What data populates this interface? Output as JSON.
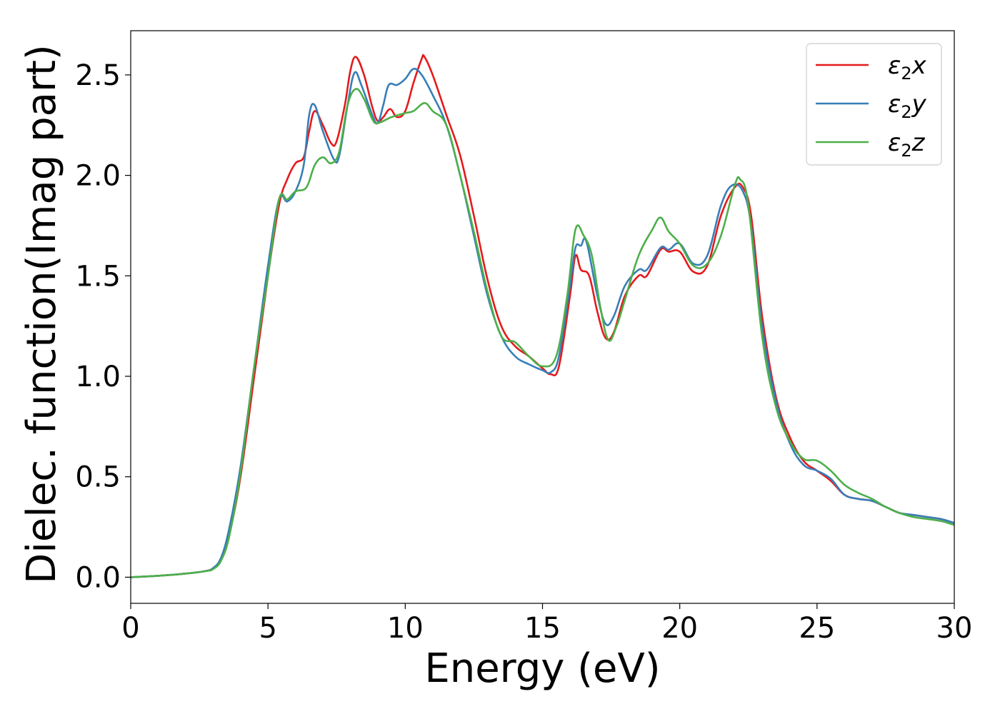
{
  "chart_data": {
    "type": "line",
    "xlabel": "Energy (eV)",
    "ylabel": "Dielec. function(Imag part)",
    "xlim": [
      0,
      30
    ],
    "ylim": [
      -0.13,
      2.72
    ],
    "x_ticks": [
      0,
      5,
      10,
      15,
      20,
      25,
      30
    ],
    "x_tick_labels": [
      "0",
      "5",
      "10",
      "15",
      "20",
      "25",
      "30"
    ],
    "y_ticks": [
      0.0,
      0.5,
      1.0,
      1.5,
      2.0,
      2.5
    ],
    "y_tick_labels": [
      "0.0",
      "0.5",
      "1.0",
      "1.5",
      "2.0",
      "2.5"
    ],
    "grid": false,
    "legend": {
      "position": "top-right",
      "entries": [
        {
          "base": "ε",
          "sub": "2",
          "suffix": "x"
        },
        {
          "base": "ε",
          "sub": "2",
          "suffix": "y"
        },
        {
          "base": "ε",
          "sub": "2",
          "suffix": "z"
        }
      ]
    },
    "series": [
      {
        "name": "ε2x",
        "color": "#e41a1c",
        "points": [
          [
            0,
            0.0
          ],
          [
            1,
            0.007
          ],
          [
            2,
            0.018
          ],
          [
            2.7,
            0.03
          ],
          [
            3.0,
            0.045
          ],
          [
            3.3,
            0.09
          ],
          [
            3.6,
            0.22
          ],
          [
            4.0,
            0.5
          ],
          [
            4.5,
            1.0
          ],
          [
            5.0,
            1.5
          ],
          [
            5.4,
            1.85
          ],
          [
            5.7,
            1.98
          ],
          [
            6.0,
            2.06
          ],
          [
            6.3,
            2.09
          ],
          [
            6.5,
            2.22
          ],
          [
            6.7,
            2.32
          ],
          [
            7.0,
            2.25
          ],
          [
            7.3,
            2.16
          ],
          [
            7.5,
            2.17
          ],
          [
            7.8,
            2.35
          ],
          [
            8.0,
            2.52
          ],
          [
            8.2,
            2.59
          ],
          [
            8.5,
            2.5
          ],
          [
            8.8,
            2.34
          ],
          [
            9.0,
            2.27
          ],
          [
            9.2,
            2.29
          ],
          [
            9.45,
            2.33
          ],
          [
            9.7,
            2.29
          ],
          [
            10.0,
            2.32
          ],
          [
            10.3,
            2.46
          ],
          [
            10.6,
            2.58
          ],
          [
            10.7,
            2.59
          ],
          [
            11.0,
            2.5
          ],
          [
            11.5,
            2.3
          ],
          [
            12.0,
            2.1
          ],
          [
            12.5,
            1.8
          ],
          [
            13.0,
            1.48
          ],
          [
            13.5,
            1.25
          ],
          [
            14.0,
            1.15
          ],
          [
            14.5,
            1.1
          ],
          [
            15.0,
            1.04
          ],
          [
            15.3,
            1.01
          ],
          [
            15.6,
            1.05
          ],
          [
            16.0,
            1.4
          ],
          [
            16.2,
            1.6
          ],
          [
            16.4,
            1.53
          ],
          [
            16.7,
            1.5
          ],
          [
            17.0,
            1.32
          ],
          [
            17.3,
            1.19
          ],
          [
            17.6,
            1.22
          ],
          [
            18.0,
            1.4
          ],
          [
            18.5,
            1.5
          ],
          [
            18.8,
            1.5
          ],
          [
            19.3,
            1.63
          ],
          [
            19.6,
            1.62
          ],
          [
            20.0,
            1.62
          ],
          [
            20.5,
            1.52
          ],
          [
            21.0,
            1.55
          ],
          [
            21.5,
            1.8
          ],
          [
            22.0,
            1.94
          ],
          [
            22.3,
            1.94
          ],
          [
            22.6,
            1.8
          ],
          [
            23.0,
            1.3
          ],
          [
            23.5,
            0.9
          ],
          [
            24.0,
            0.7
          ],
          [
            24.5,
            0.58
          ],
          [
            25.0,
            0.53
          ],
          [
            25.5,
            0.48
          ],
          [
            26.0,
            0.41
          ],
          [
            26.5,
            0.39
          ],
          [
            27.0,
            0.38
          ],
          [
            27.5,
            0.35
          ],
          [
            28.0,
            0.32
          ],
          [
            28.5,
            0.31
          ],
          [
            29.0,
            0.3
          ],
          [
            29.5,
            0.29
          ],
          [
            30.0,
            0.27
          ]
        ]
      },
      {
        "name": "ε2y",
        "color": "#377eb8",
        "points": [
          [
            0,
            0.0
          ],
          [
            1,
            0.007
          ],
          [
            2,
            0.018
          ],
          [
            2.7,
            0.03
          ],
          [
            3.0,
            0.045
          ],
          [
            3.3,
            0.1
          ],
          [
            3.6,
            0.25
          ],
          [
            4.0,
            0.55
          ],
          [
            4.5,
            1.05
          ],
          [
            5.0,
            1.55
          ],
          [
            5.4,
            1.88
          ],
          [
            5.7,
            1.87
          ],
          [
            6.0,
            1.92
          ],
          [
            6.3,
            2.05
          ],
          [
            6.5,
            2.3
          ],
          [
            6.7,
            2.35
          ],
          [
            7.0,
            2.22
          ],
          [
            7.4,
            2.08
          ],
          [
            7.6,
            2.1
          ],
          [
            7.9,
            2.35
          ],
          [
            8.15,
            2.51
          ],
          [
            8.4,
            2.45
          ],
          [
            8.8,
            2.3
          ],
          [
            9.0,
            2.26
          ],
          [
            9.2,
            2.35
          ],
          [
            9.4,
            2.45
          ],
          [
            9.7,
            2.45
          ],
          [
            10.0,
            2.48
          ],
          [
            10.3,
            2.53
          ],
          [
            10.6,
            2.5
          ],
          [
            11.0,
            2.4
          ],
          [
            11.5,
            2.25
          ],
          [
            12.0,
            2.0
          ],
          [
            12.5,
            1.7
          ],
          [
            13.0,
            1.4
          ],
          [
            13.5,
            1.2
          ],
          [
            14.0,
            1.1
          ],
          [
            14.5,
            1.06
          ],
          [
            15.0,
            1.03
          ],
          [
            15.3,
            1.02
          ],
          [
            15.6,
            1.1
          ],
          [
            16.0,
            1.45
          ],
          [
            16.2,
            1.64
          ],
          [
            16.4,
            1.65
          ],
          [
            16.6,
            1.67
          ],
          [
            17.0,
            1.4
          ],
          [
            17.3,
            1.26
          ],
          [
            17.6,
            1.3
          ],
          [
            18.0,
            1.45
          ],
          [
            18.5,
            1.53
          ],
          [
            18.8,
            1.53
          ],
          [
            19.3,
            1.64
          ],
          [
            19.6,
            1.63
          ],
          [
            20.0,
            1.66
          ],
          [
            20.5,
            1.56
          ],
          [
            21.0,
            1.6
          ],
          [
            21.5,
            1.85
          ],
          [
            21.9,
            1.95
          ],
          [
            22.3,
            1.92
          ],
          [
            22.6,
            1.75
          ],
          [
            23.0,
            1.25
          ],
          [
            23.5,
            0.88
          ],
          [
            24.0,
            0.67
          ],
          [
            24.5,
            0.56
          ],
          [
            25.0,
            0.53
          ],
          [
            25.5,
            0.49
          ],
          [
            26.0,
            0.41
          ],
          [
            26.5,
            0.39
          ],
          [
            27.0,
            0.38
          ],
          [
            27.5,
            0.35
          ],
          [
            28.0,
            0.32
          ],
          [
            28.5,
            0.31
          ],
          [
            29.0,
            0.3
          ],
          [
            29.5,
            0.29
          ],
          [
            30.0,
            0.27
          ]
        ]
      },
      {
        "name": "ε2z",
        "color": "#4daf4a",
        "points": [
          [
            0,
            0.0
          ],
          [
            1,
            0.007
          ],
          [
            2,
            0.018
          ],
          [
            2.7,
            0.03
          ],
          [
            3.0,
            0.04
          ],
          [
            3.3,
            0.085
          ],
          [
            3.6,
            0.21
          ],
          [
            4.0,
            0.52
          ],
          [
            4.5,
            1.05
          ],
          [
            5.0,
            1.5
          ],
          [
            5.4,
            1.88
          ],
          [
            5.7,
            1.88
          ],
          [
            6.0,
            1.92
          ],
          [
            6.4,
            1.94
          ],
          [
            6.7,
            2.05
          ],
          [
            7.0,
            2.09
          ],
          [
            7.3,
            2.06
          ],
          [
            7.6,
            2.12
          ],
          [
            7.9,
            2.35
          ],
          [
            8.2,
            2.43
          ],
          [
            8.5,
            2.38
          ],
          [
            8.8,
            2.28
          ],
          [
            9.0,
            2.26
          ],
          [
            9.5,
            2.29
          ],
          [
            10.0,
            2.31
          ],
          [
            10.3,
            2.32
          ],
          [
            10.7,
            2.36
          ],
          [
            11.0,
            2.32
          ],
          [
            11.5,
            2.25
          ],
          [
            12.0,
            2.0
          ],
          [
            12.5,
            1.72
          ],
          [
            13.0,
            1.42
          ],
          [
            13.5,
            1.2
          ],
          [
            14.0,
            1.17
          ],
          [
            14.5,
            1.1
          ],
          [
            15.0,
            1.05
          ],
          [
            15.5,
            1.1
          ],
          [
            15.9,
            1.4
          ],
          [
            16.2,
            1.73
          ],
          [
            16.5,
            1.7
          ],
          [
            16.8,
            1.6
          ],
          [
            17.1,
            1.35
          ],
          [
            17.4,
            1.18
          ],
          [
            17.7,
            1.25
          ],
          [
            18.0,
            1.38
          ],
          [
            18.5,
            1.6
          ],
          [
            19.0,
            1.73
          ],
          [
            19.3,
            1.79
          ],
          [
            19.6,
            1.72
          ],
          [
            20.0,
            1.66
          ],
          [
            20.5,
            1.55
          ],
          [
            21.0,
            1.56
          ],
          [
            21.5,
            1.7
          ],
          [
            22.0,
            1.95
          ],
          [
            22.2,
            1.98
          ],
          [
            22.5,
            1.85
          ],
          [
            23.0,
            1.2
          ],
          [
            23.5,
            0.85
          ],
          [
            24.0,
            0.68
          ],
          [
            24.5,
            0.59
          ],
          [
            25.0,
            0.58
          ],
          [
            25.5,
            0.53
          ],
          [
            26.0,
            0.46
          ],
          [
            26.5,
            0.42
          ],
          [
            27.0,
            0.39
          ],
          [
            27.5,
            0.35
          ],
          [
            28.0,
            0.32
          ],
          [
            28.5,
            0.3
          ],
          [
            29.0,
            0.29
          ],
          [
            29.5,
            0.28
          ],
          [
            30.0,
            0.26
          ]
        ]
      }
    ]
  }
}
